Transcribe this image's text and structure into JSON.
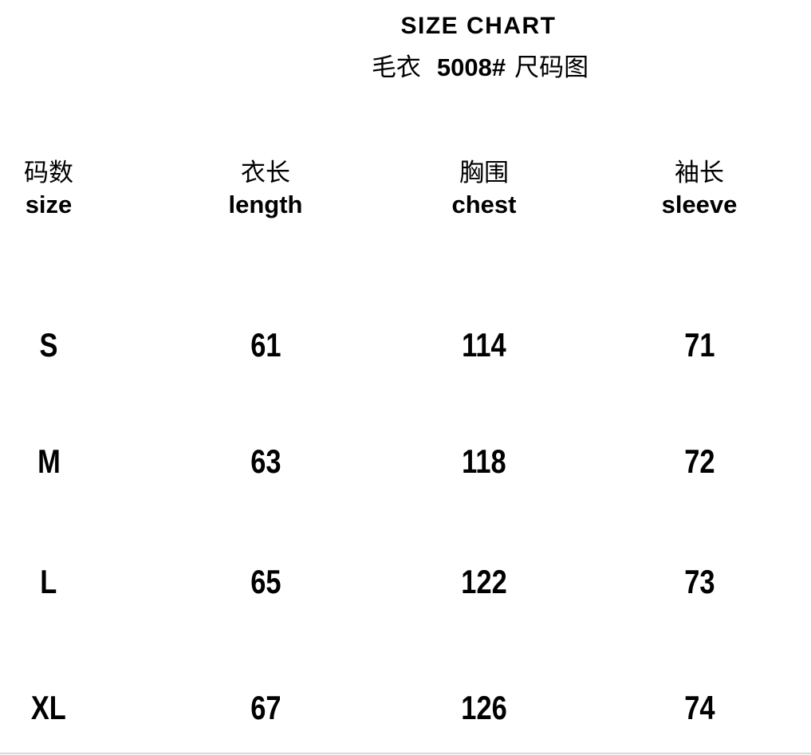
{
  "header": {
    "title": "SIZE CHART",
    "subtitle_prefix_cn": "毛衣",
    "model_number": "5008#",
    "subtitle_suffix_cn": "尺码图"
  },
  "table": {
    "columns": [
      {
        "cn": "码数",
        "en": "size"
      },
      {
        "cn": "衣长",
        "en": "length"
      },
      {
        "cn": "胸围",
        "en": "chest"
      },
      {
        "cn": "袖长",
        "en": "sleeve"
      }
    ],
    "rows": [
      [
        "S",
        "61",
        "114",
        "71"
      ],
      [
        "M",
        "63",
        "118",
        "72"
      ],
      [
        "L",
        "65",
        "122",
        "73"
      ],
      [
        "XL",
        "67",
        "126",
        "74"
      ]
    ]
  },
  "colors": {
    "text": "#000000",
    "background": "#ffffff",
    "bottom_rule": "#d9d9d9"
  },
  "chart_data": {
    "type": "table",
    "title": "SIZE CHART",
    "subtitle": "毛衣 5008# 尺码图",
    "columns": [
      "码数 size",
      "衣长 length",
      "胸围 chest",
      "袖长 sleeve"
    ],
    "rows": [
      [
        "S",
        61,
        114,
        71
      ],
      [
        "M",
        63,
        118,
        72
      ],
      [
        "L",
        65,
        122,
        73
      ],
      [
        "XL",
        67,
        126,
        74
      ]
    ]
  }
}
